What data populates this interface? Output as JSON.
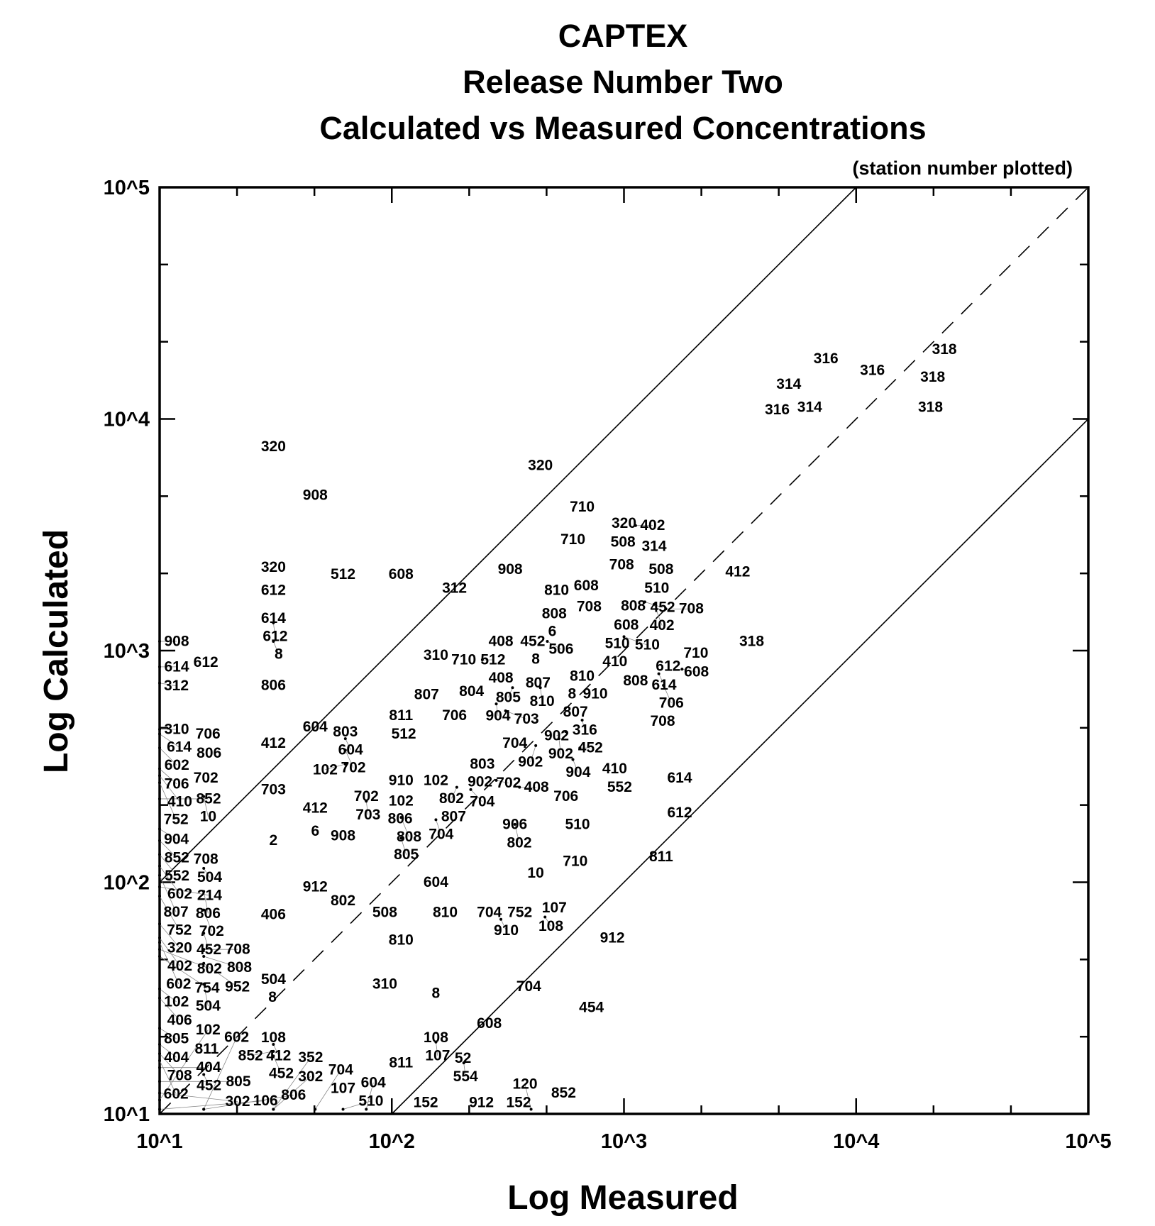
{
  "chart_data": {
    "type": "scatter",
    "title": [
      "CAPTEX",
      "Release Number Two",
      "Calculated vs Measured Concentrations"
    ],
    "subtitle": "(station number plotted)",
    "xlabel": "Log Measured",
    "ylabel": "Log Calculated",
    "x_scale": "log10",
    "y_scale": "log10",
    "xlim": [
      10,
      100000
    ],
    "ylim": [
      10,
      100000
    ],
    "x_ticks": [
      "10^1",
      "10^2",
      "10^3",
      "10^4",
      "10^5"
    ],
    "y_ticks": [
      "10^1",
      "10^2",
      "10^3",
      "10^4",
      "10^5"
    ],
    "reference_lines": [
      {
        "name": "1:1",
        "style": "dashed",
        "factor": 1
      },
      {
        "name": "factor of 10 over",
        "style": "solid",
        "factor": 10
      },
      {
        "name": "factor of 10 under",
        "style": "solid",
        "factor": 0.1
      }
    ],
    "point_value_units": "log10 of concentration (x = measured, y = calculated); marker = station number",
    "points": [
      {
        "s": "318",
        "x": 4.38,
        "y": 4.3
      },
      {
        "s": "316",
        "x": 3.87,
        "y": 4.26
      },
      {
        "s": "316",
        "x": 4.07,
        "y": 4.21
      },
      {
        "s": "318",
        "x": 4.33,
        "y": 4.18
      },
      {
        "s": "314",
        "x": 3.71,
        "y": 4.15
      },
      {
        "s": "316",
        "x": 3.66,
        "y": 4.04
      },
      {
        "s": "314",
        "x": 3.8,
        "y": 4.05
      },
      {
        "s": "318",
        "x": 4.32,
        "y": 4.05
      },
      {
        "s": "320",
        "x": 1.49,
        "y": 3.88
      },
      {
        "s": "320",
        "x": 2.64,
        "y": 3.8
      },
      {
        "s": "908",
        "x": 1.67,
        "y": 3.67
      },
      {
        "s": "710",
        "x": 2.82,
        "y": 3.62
      },
      {
        "s": "320",
        "x": 3.0,
        "y": 3.55
      },
      {
        "s": "402",
        "x": 3.05,
        "y": 3.54
      },
      {
        "s": "508",
        "x": 3.0,
        "y": 3.49
      },
      {
        "s": "710",
        "x": 2.78,
        "y": 3.48
      },
      {
        "s": "314",
        "x": 3.13,
        "y": 3.45
      },
      {
        "s": "320",
        "x": 1.49,
        "y": 3.36
      },
      {
        "s": "512",
        "x": 1.79,
        "y": 3.33
      },
      {
        "s": "608",
        "x": 2.04,
        "y": 3.33
      },
      {
        "s": "908",
        "x": 2.51,
        "y": 3.35
      },
      {
        "s": "708",
        "x": 2.99,
        "y": 3.37
      },
      {
        "s": "508",
        "x": 3.16,
        "y": 3.35
      },
      {
        "s": "412",
        "x": 3.49,
        "y": 3.34
      },
      {
        "s": "312",
        "x": 2.27,
        "y": 3.27
      },
      {
        "s": "612",
        "x": 1.49,
        "y": 3.26
      },
      {
        "s": "510",
        "x": 3.13,
        "y": 3.29
      },
      {
        "s": "810",
        "x": 2.71,
        "y": 3.26
      },
      {
        "s": "608",
        "x": 2.81,
        "y": 3.28
      },
      {
        "s": "708",
        "x": 2.85,
        "y": 3.19
      },
      {
        "s": "808",
        "x": 3.04,
        "y": 3.2
      },
      {
        "s": "452",
        "x": 3.09,
        "y": 3.21
      },
      {
        "s": "402",
        "x": 3.13,
        "y": 3.2
      },
      {
        "s": "708",
        "x": 3.18,
        "y": 3.18
      },
      {
        "s": "614",
        "x": 1.49,
        "y": 3.14
      },
      {
        "s": "612",
        "x": 1.49,
        "y": 3.12
      },
      {
        "s": "808",
        "x": 2.7,
        "y": 3.16
      },
      {
        "s": "6",
        "x": 2.68,
        "y": 3.11
      },
      {
        "s": "608",
        "x": 3.01,
        "y": 3.11
      },
      {
        "s": "908",
        "x": 1.0,
        "y": 3.04
      },
      {
        "s": "8",
        "x": 1.49,
        "y": 3.04
      },
      {
        "s": "408",
        "x": 2.47,
        "y": 3.04
      },
      {
        "s": "452",
        "x": 2.62,
        "y": 3.05
      },
      {
        "s": "506",
        "x": 2.67,
        "y": 3.04
      },
      {
        "s": "510",
        "x": 2.96,
        "y": 3.05
      },
      {
        "s": "510",
        "x": 3.0,
        "y": 3.06
      },
      {
        "s": "318",
        "x": 3.55,
        "y": 3.04
      },
      {
        "s": "614",
        "x": 1.0,
        "y": 2.93
      },
      {
        "s": "612",
        "x": 1.19,
        "y": 2.95
      },
      {
        "s": "310",
        "x": 2.19,
        "y": 2.98
      },
      {
        "s": "710",
        "x": 2.31,
        "y": 2.96
      },
      {
        "s": "512",
        "x": 2.39,
        "y": 2.96
      },
      {
        "s": "8",
        "x": 2.62,
        "y": 2.97
      },
      {
        "s": "410",
        "x": 2.95,
        "y": 2.98
      },
      {
        "s": "710",
        "x": 3.31,
        "y": 2.99
      },
      {
        "s": "612",
        "x": 3.22,
        "y": 2.95
      },
      {
        "s": "608",
        "x": 3.25,
        "y": 2.92
      },
      {
        "s": "312",
        "x": 1.0,
        "y": 2.86
      },
      {
        "s": "806",
        "x": 1.49,
        "y": 2.85
      },
      {
        "s": "408",
        "x": 2.47,
        "y": 2.89
      },
      {
        "s": "807",
        "x": 2.63,
        "y": 2.86
      },
      {
        "s": "810",
        "x": 2.82,
        "y": 2.89
      },
      {
        "s": "8",
        "x": 2.78,
        "y": 2.85
      },
      {
        "s": "910",
        "x": 2.88,
        "y": 2.85
      },
      {
        "s": "808",
        "x": 3.05,
        "y": 2.87
      },
      {
        "s": "614",
        "x": 3.15,
        "y": 2.9
      },
      {
        "s": "706",
        "x": 3.17,
        "y": 2.85
      },
      {
        "s": "805",
        "x": 2.52,
        "y": 2.84
      },
      {
        "s": "810",
        "x": 2.64,
        "y": 2.84
      },
      {
        "s": "804",
        "x": 2.37,
        "y": 2.83
      },
      {
        "s": "807",
        "x": 2.15,
        "y": 2.81
      },
      {
        "s": "904",
        "x": 2.45,
        "y": 2.77
      },
      {
        "s": "807",
        "x": 2.78,
        "y": 2.77
      },
      {
        "s": "703",
        "x": 2.49,
        "y": 2.74
      },
      {
        "s": "811",
        "x": 2.04,
        "y": 2.72
      },
      {
        "s": "706",
        "x": 2.27,
        "y": 2.72
      },
      {
        "s": "316",
        "x": 2.82,
        "y": 2.7
      },
      {
        "s": "708",
        "x": 3.16,
        "y": 2.7
      },
      {
        "s": "512",
        "x": 2.04,
        "y": 2.66
      },
      {
        "s": "604",
        "x": 1.67,
        "y": 2.67
      },
      {
        "s": "803",
        "x": 1.8,
        "y": 2.65
      },
      {
        "s": "604",
        "x": 1.8,
        "y": 2.62
      },
      {
        "s": "310",
        "x": 1.0,
        "y": 2.66
      },
      {
        "s": "614",
        "x": 1.0,
        "y": 2.64
      },
      {
        "s": "706",
        "x": 1.19,
        "y": 2.64
      },
      {
        "s": "412",
        "x": 1.49,
        "y": 2.6
      },
      {
        "s": "902",
        "x": 2.75,
        "y": 2.65
      },
      {
        "s": "902",
        "x": 2.72,
        "y": 2.62
      },
      {
        "s": "704",
        "x": 2.53,
        "y": 2.6
      },
      {
        "s": "902",
        "x": 2.62,
        "y": 2.59
      },
      {
        "s": "452",
        "x": 2.81,
        "y": 2.58
      },
      {
        "s": "904",
        "x": 2.78,
        "y": 2.53
      },
      {
        "s": "602",
        "x": 1.0,
        "y": 2.58
      },
      {
        "s": "806",
        "x": 1.19,
        "y": 2.57
      },
      {
        "s": "702",
        "x": 1.8,
        "y": 2.57
      },
      {
        "s": "102",
        "x": 1.8,
        "y": 2.51
      },
      {
        "s": "706",
        "x": 1.0,
        "y": 2.49
      },
      {
        "s": "803",
        "x": 2.39,
        "y": 2.51
      },
      {
        "s": "410",
        "x": 2.96,
        "y": 2.49
      },
      {
        "s": "552",
        "x": 2.97,
        "y": 2.43
      },
      {
        "s": "614",
        "x": 3.24,
        "y": 2.45
      },
      {
        "s": "410",
        "x": 1.0,
        "y": 2.46
      },
      {
        "s": "702",
        "x": 1.19,
        "y": 2.45
      },
      {
        "s": "752",
        "x": 1.0,
        "y": 2.43
      },
      {
        "s": "910",
        "x": 2.04,
        "y": 2.44
      },
      {
        "s": "102",
        "x": 2.19,
        "y": 2.44
      },
      {
        "s": "902",
        "x": 2.38,
        "y": 2.44
      },
      {
        "s": "702",
        "x": 2.45,
        "y": 2.44
      },
      {
        "s": "802",
        "x": 2.28,
        "y": 2.41
      },
      {
        "s": "704",
        "x": 2.34,
        "y": 2.4
      },
      {
        "s": "408",
        "x": 2.55,
        "y": 2.41
      },
      {
        "s": "706",
        "x": 2.75,
        "y": 2.37
      },
      {
        "s": "703",
        "x": 1.49,
        "y": 2.4
      },
      {
        "s": "852",
        "x": 1.0,
        "y": 2.36
      },
      {
        "s": "10",
        "x": 1.19,
        "y": 2.37
      },
      {
        "s": "702",
        "x": 1.89,
        "y": 2.37
      },
      {
        "s": "703",
        "x": 1.89,
        "y": 2.35
      },
      {
        "s": "102",
        "x": 2.04,
        "y": 2.35
      },
      {
        "s": "807",
        "x": 2.27,
        "y": 2.32
      },
      {
        "s": "412",
        "x": 1.67,
        "y": 2.32
      },
      {
        "s": "806",
        "x": 2.04,
        "y": 2.31
      },
      {
        "s": "808",
        "x": 2.04,
        "y": 2.28
      },
      {
        "s": "704",
        "x": 2.19,
        "y": 2.27
      },
      {
        "s": "612",
        "x": 3.24,
        "y": 2.3
      },
      {
        "s": "906",
        "x": 2.53,
        "y": 2.25
      },
      {
        "s": "802",
        "x": 2.53,
        "y": 2.25
      },
      {
        "s": "510",
        "x": 2.8,
        "y": 2.25
      },
      {
        "s": "904",
        "x": 1.0,
        "y": 2.23
      },
      {
        "s": "6",
        "x": 1.67,
        "y": 2.22
      },
      {
        "s": "908",
        "x": 1.79,
        "y": 2.2
      },
      {
        "s": "805",
        "x": 2.04,
        "y": 2.19
      },
      {
        "s": "852",
        "x": 1.0,
        "y": 2.18
      },
      {
        "s": "2",
        "x": 1.49,
        "y": 2.18
      },
      {
        "s": "552",
        "x": 1.0,
        "y": 2.12
      },
      {
        "s": "811",
        "x": 3.16,
        "y": 2.11
      },
      {
        "s": "708",
        "x": 1.19,
        "y": 2.1
      },
      {
        "s": "710",
        "x": 2.79,
        "y": 2.09
      },
      {
        "s": "602",
        "x": 1.0,
        "y": 2.07
      },
      {
        "s": "504",
        "x": 1.19,
        "y": 2.06
      },
      {
        "s": "10",
        "x": 2.62,
        "y": 2.04
      },
      {
        "s": "807",
        "x": 1.0,
        "y": 2.03
      },
      {
        "s": "604",
        "x": 2.19,
        "y": 2.0
      },
      {
        "s": "912",
        "x": 1.67,
        "y": 1.98
      },
      {
        "s": "214",
        "x": 1.0,
        "y": 1.98
      },
      {
        "s": "752",
        "x": 1.0,
        "y": 1.94
      },
      {
        "s": "806",
        "x": 1.19,
        "y": 1.96
      },
      {
        "s": "802",
        "x": 1.79,
        "y": 1.92
      },
      {
        "s": "107",
        "x": 2.7,
        "y": 1.89
      },
      {
        "s": "702",
        "x": 1.19,
        "y": 1.88
      },
      {
        "s": "406",
        "x": 1.49,
        "y": 1.86
      },
      {
        "s": "508",
        "x": 1.97,
        "y": 1.87
      },
      {
        "s": "810",
        "x": 2.23,
        "y": 1.87
      },
      {
        "s": "704",
        "x": 2.42,
        "y": 1.87
      },
      {
        "s": "910",
        "x": 2.47,
        "y": 1.84
      },
      {
        "s": "752",
        "x": 2.54,
        "y": 1.85
      },
      {
        "s": "108",
        "x": 2.66,
        "y": 1.85
      },
      {
        "s": "320",
        "x": 1.0,
        "y": 1.82
      },
      {
        "s": "452",
        "x": 1.19,
        "y": 1.78
      },
      {
        "s": "912",
        "x": 2.95,
        "y": 1.76
      },
      {
        "s": "810",
        "x": 2.04,
        "y": 1.75
      },
      {
        "s": "402",
        "x": 1.0,
        "y": 1.76
      },
      {
        "s": "602",
        "x": 1.0,
        "y": 1.74
      },
      {
        "s": "802",
        "x": 1.0,
        "y": 1.71
      },
      {
        "s": "754",
        "x": 1.0,
        "y": 1.68
      },
      {
        "s": "708",
        "x": 1.19,
        "y": 1.71
      },
      {
        "s": "808",
        "x": 1.19,
        "y": 1.68
      },
      {
        "s": "952",
        "x": 1.19,
        "y": 1.65
      },
      {
        "s": "504",
        "x": 1.49,
        "y": 1.58
      },
      {
        "s": "8",
        "x": 1.49,
        "y": 1.54
      },
      {
        "s": "504",
        "x": 1.19,
        "y": 1.56
      },
      {
        "s": "310",
        "x": 1.97,
        "y": 1.56
      },
      {
        "s": "102",
        "x": 1.0,
        "y": 1.54
      },
      {
        "s": "406",
        "x": 1.0,
        "y": 1.5
      },
      {
        "s": "704",
        "x": 2.59,
        "y": 1.55
      },
      {
        "s": "8",
        "x": 2.19,
        "y": 1.52
      },
      {
        "s": "454",
        "x": 2.86,
        "y": 1.46
      },
      {
        "s": "608",
        "x": 2.42,
        "y": 1.39
      },
      {
        "s": "805",
        "x": 1.0,
        "y": 1.37
      },
      {
        "s": "108",
        "x": 2.19,
        "y": 1.33
      },
      {
        "s": "107",
        "x": 2.19,
        "y": 1.31
      },
      {
        "s": "108",
        "x": 1.49,
        "y": 1.33
      },
      {
        "s": "412",
        "x": 1.49,
        "y": 1.3
      },
      {
        "s": "852",
        "x": 1.49,
        "y": 1.27
      },
      {
        "s": "452",
        "x": 1.49,
        "y": 1.25
      },
      {
        "s": "404",
        "x": 1.0,
        "y": 1.3
      },
      {
        "s": "708",
        "x": 1.0,
        "y": 1.26
      },
      {
        "s": "602",
        "x": 1.0,
        "y": 1.23
      },
      {
        "s": "404",
        "x": 1.0,
        "y": 1.2
      },
      {
        "s": "811",
        "x": 1.19,
        "y": 1.27
      },
      {
        "s": "52",
        "x": 2.27,
        "y": 1.24
      },
      {
        "s": "554",
        "x": 2.31,
        "y": 1.22
      },
      {
        "s": "811",
        "x": 2.04,
        "y": 1.22
      },
      {
        "s": "452",
        "x": 1.19,
        "y": 1.17
      },
      {
        "s": "805",
        "x": 1.0,
        "y": 1.14
      },
      {
        "s": "302",
        "x": 1.0,
        "y": 1.09
      },
      {
        "s": "102",
        "x": 1.0,
        "y": 1.06
      },
      {
        "s": "107",
        "x": 1.79,
        "y": 1.11
      },
      {
        "s": "852",
        "x": 2.74,
        "y": 1.09
      },
      {
        "s": "106",
        "x": 1.0,
        "y": 1.02
      },
      {
        "s": "806",
        "x": 1.19,
        "y": 1.02
      },
      {
        "s": "602",
        "x": 1.19,
        "y": 1.02
      },
      {
        "s": "302",
        "x": 1.49,
        "y": 1.02
      },
      {
        "s": "352",
        "x": 1.49,
        "y": 1.02
      },
      {
        "s": "704",
        "x": 1.67,
        "y": 1.02
      },
      {
        "s": "510",
        "x": 1.79,
        "y": 1.02
      },
      {
        "s": "604",
        "x": 1.89,
        "y": 1.02
      },
      {
        "s": "152",
        "x": 2.15,
        "y": 1.02
      },
      {
        "s": "912",
        "x": 2.39,
        "y": 1.02
      },
      {
        "s": "152",
        "x": 2.55,
        "y": 1.02
      },
      {
        "s": "120",
        "x": 2.6,
        "y": 1.02
      }
    ],
    "grid": false,
    "legend": "none"
  }
}
